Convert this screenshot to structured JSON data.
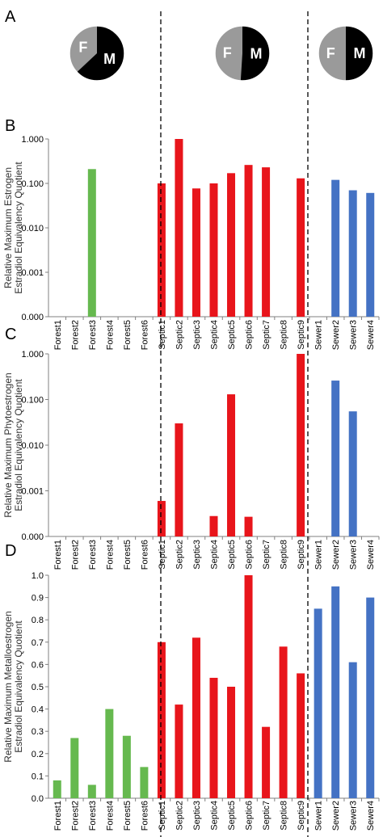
{
  "figure": {
    "panel_labels": [
      "A",
      "B",
      "C",
      "D"
    ],
    "colors": {
      "forest": "#66b94f",
      "septic": "#e8151b",
      "sewer": "#4472c4",
      "female": "#9a9a9a",
      "male": "#000000"
    }
  },
  "pies": [
    {
      "name": "forest-pie",
      "female_label": "F",
      "male_label": "M",
      "female_fraction": 0.37
    },
    {
      "name": "septic-pie",
      "female_label": "F",
      "male_label": "M",
      "female_fraction": 0.49
    },
    {
      "name": "sewer-pie",
      "female_label": "F",
      "male_label": "M",
      "female_fraction": 0.5
    }
  ],
  "groups": [
    {
      "name": "Forest",
      "color": "#66b94f",
      "categories": [
        "Forest1",
        "Forest2",
        "Forest3",
        "Forest4",
        "Forest5",
        "Forest6"
      ]
    },
    {
      "name": "Septic",
      "color": "#e8151b",
      "categories": [
        "Septic1",
        "Septic2",
        "Septic3",
        "Septic4",
        "Septic5",
        "Septic6",
        "Septic7",
        "Septic8",
        "Septic9"
      ]
    },
    {
      "name": "Sewer",
      "color": "#4472c4",
      "categories": [
        "Sewer1",
        "Sewer2",
        "Sewer3",
        "Sewer4"
      ]
    }
  ],
  "chart_data": [
    {
      "panel": "B",
      "type": "bar",
      "scale": "log",
      "ylabel_lines": [
        "Relative Maximum Estrogen",
        "Estradiol Equivalency Quotient"
      ],
      "yticks": [
        0.0001,
        0.001,
        0.01,
        0.1,
        1
      ],
      "ytick_labels": [
        "0.000",
        "0.001",
        "0.010",
        "0.100",
        "1.000"
      ],
      "ylim": [
        0.0001,
        1
      ],
      "categories": [
        "Forest1",
        "Forest2",
        "Forest3",
        "Forest4",
        "Forest5",
        "Forest6",
        "Septic1",
        "Septic2",
        "Septic3",
        "Septic4",
        "Septic5",
        "Septic6",
        "Septic7",
        "Septic8",
        "Septic9",
        "Sewer1",
        "Sewer2",
        "Sewer3",
        "Sewer4"
      ],
      "values": [
        null,
        null,
        0.21,
        null,
        null,
        null,
        0.1,
        1.0,
        0.077,
        0.1,
        0.17,
        0.26,
        0.23,
        null,
        0.13,
        null,
        0.12,
        0.07,
        0.061
      ]
    },
    {
      "panel": "C",
      "type": "bar",
      "scale": "log",
      "ylabel_lines": [
        "Relative Maximum Phytoestrogen",
        "Estradiol Equivalency Quotient"
      ],
      "yticks": [
        0.0001,
        0.001,
        0.01,
        0.1,
        1
      ],
      "ytick_labels": [
        "0.000",
        "0.001",
        "0.010",
        "0.100",
        "1.000"
      ],
      "ylim": [
        0.0001,
        1
      ],
      "categories": [
        "Forest1",
        "Forest2",
        "Forest3",
        "Forest4",
        "Forest5",
        "Forest6",
        "Septic1",
        "Septic2",
        "Septic3",
        "Septic4",
        "Septic5",
        "Septic6",
        "Septic7",
        "Septic8",
        "Septic9",
        "Sewer1",
        "Sewer2",
        "Sewer3",
        "Sewer4"
      ],
      "values": [
        null,
        null,
        null,
        null,
        null,
        null,
        0.0006,
        0.03,
        null,
        0.00028,
        0.13,
        0.00027,
        null,
        null,
        1.0,
        null,
        0.26,
        0.055,
        null
      ]
    },
    {
      "panel": "D",
      "type": "bar",
      "scale": "linear",
      "ylabel_lines": [
        "Relative Maximum Metalloestrogen",
        "Estradiol Equivalency Quotient"
      ],
      "yticks": [
        0,
        0.1,
        0.2,
        0.3,
        0.4,
        0.5,
        0.6,
        0.7,
        0.8,
        0.9,
        1.0
      ],
      "ytick_labels": [
        "0.0",
        "0.1",
        "0.2",
        "0.3",
        "0.4",
        "0.5",
        "0.6",
        "0.7",
        "0.8",
        "0.9",
        "1.0"
      ],
      "ylim": [
        0,
        1
      ],
      "categories": [
        "Forest1",
        "Forest2",
        "Forest3",
        "Forest4",
        "Forest5",
        "Forest6",
        "Septic1",
        "Septic2",
        "Septic3",
        "Septic4",
        "Septic5",
        "Septic6",
        "Septic7",
        "Septic8",
        "Septic9",
        "Sewer1",
        "Sewer2",
        "Sewer3",
        "Sewer4"
      ],
      "values": [
        0.08,
        0.27,
        0.06,
        0.4,
        0.28,
        0.14,
        0.7,
        0.42,
        0.72,
        0.54,
        0.5,
        1.0,
        0.32,
        0.68,
        0.56,
        0.85,
        0.95,
        0.61,
        0.9
      ]
    }
  ]
}
